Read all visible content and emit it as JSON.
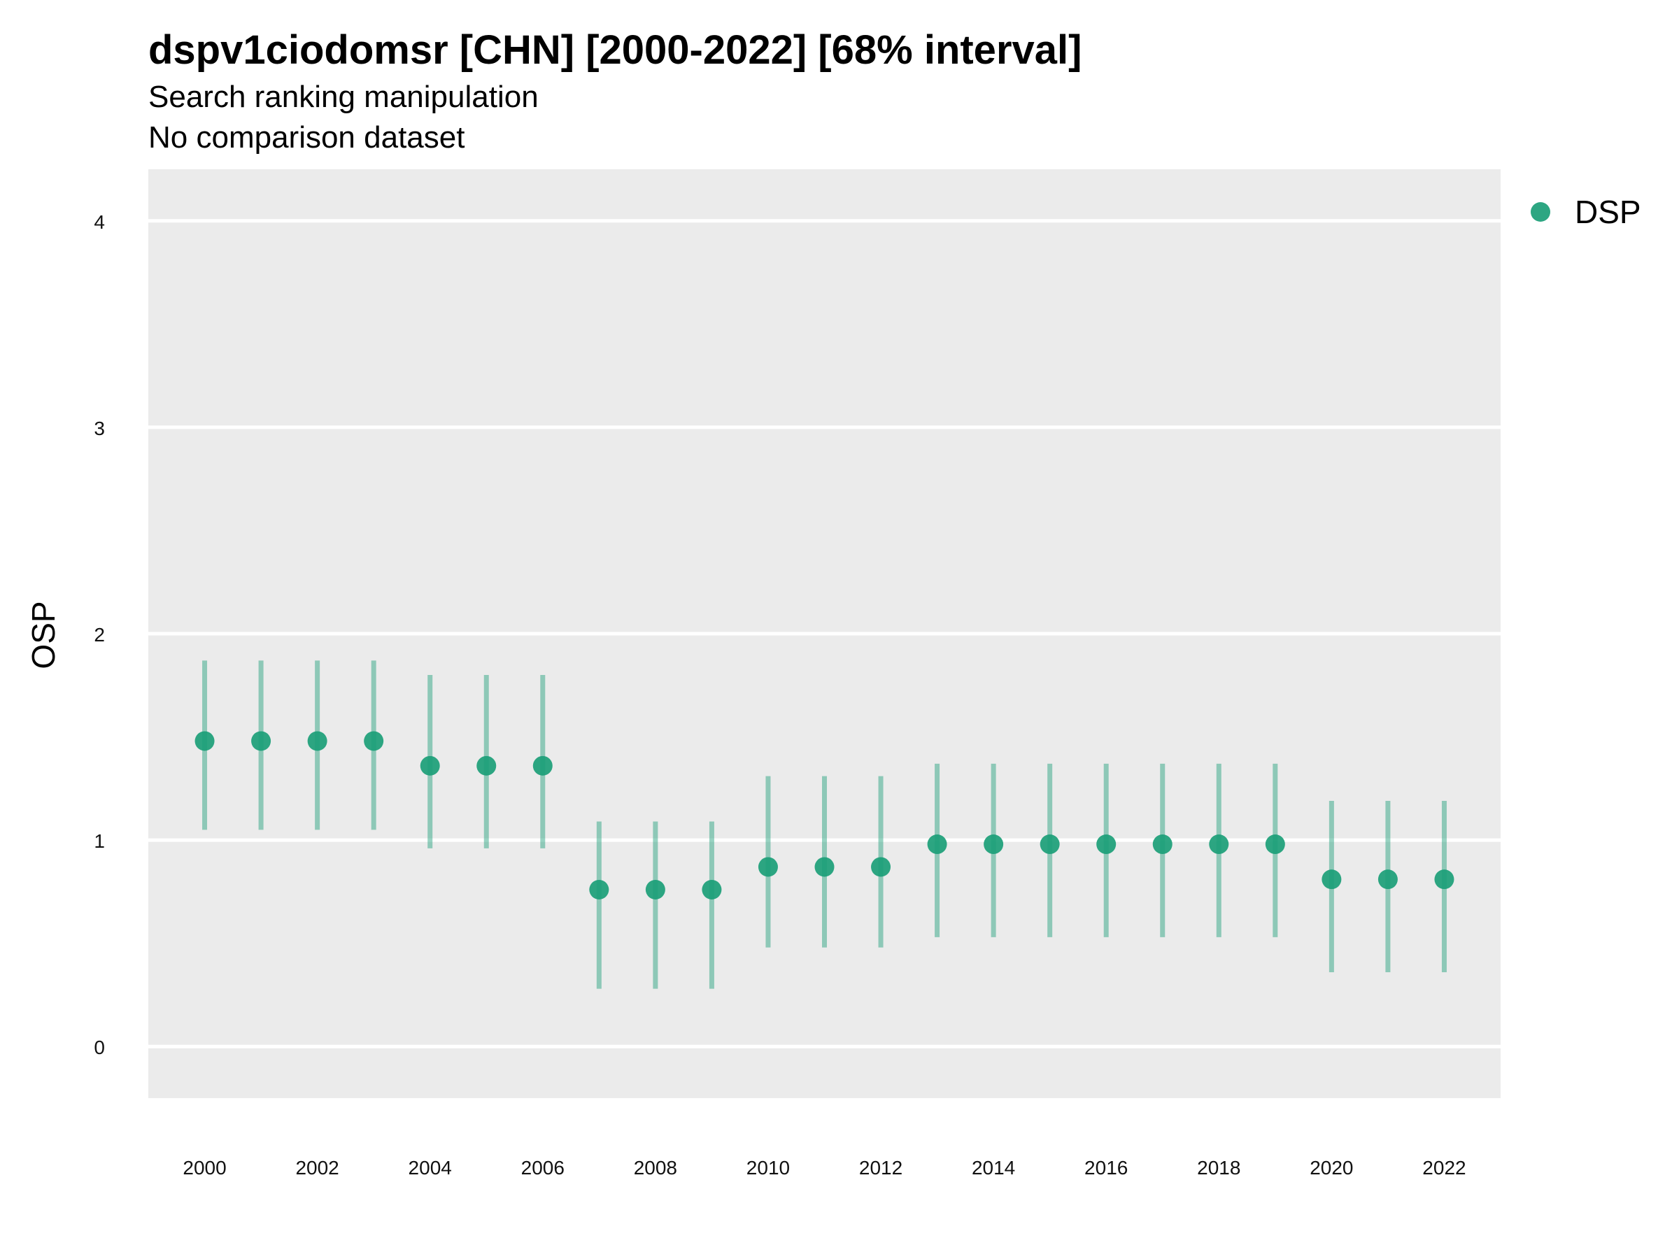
{
  "chart_data": {
    "type": "scatter",
    "title": "dspv1ciodomsr [CHN] [2000-2022] [68% interval]",
    "subtitle": [
      "Search ranking manipulation",
      "No comparison dataset"
    ],
    "xlabel": "",
    "ylabel": "OSP",
    "xlim": [
      1999,
      2023
    ],
    "ylim": [
      -0.25,
      4.25
    ],
    "xticks": [
      "2000",
      "2002",
      "2004",
      "2006",
      "2008",
      "2010",
      "2012",
      "2014",
      "2016",
      "2018",
      "2020",
      "2022"
    ],
    "yticks": [
      "0",
      "1",
      "2",
      "3",
      "4"
    ],
    "grid": true,
    "legend_position": "top-right",
    "series": [
      {
        "name": "DSP",
        "color": "#1b9e77",
        "x": [
          2000,
          2001,
          2002,
          2003,
          2004,
          2005,
          2006,
          2007,
          2008,
          2009,
          2010,
          2011,
          2012,
          2013,
          2014,
          2015,
          2016,
          2017,
          2018,
          2019,
          2020,
          2021,
          2022
        ],
        "y": [
          1.48,
          1.48,
          1.48,
          1.48,
          1.36,
          1.36,
          1.36,
          0.76,
          0.76,
          0.76,
          0.87,
          0.87,
          0.87,
          0.98,
          0.98,
          0.98,
          0.98,
          0.98,
          0.98,
          0.98,
          0.81,
          0.81,
          0.81
        ],
        "lower": [
          1.05,
          1.05,
          1.05,
          1.05,
          0.96,
          0.96,
          0.96,
          0.28,
          0.28,
          0.28,
          0.48,
          0.48,
          0.48,
          0.53,
          0.53,
          0.53,
          0.53,
          0.53,
          0.53,
          0.53,
          0.36,
          0.36,
          0.36
        ],
        "upper": [
          1.87,
          1.87,
          1.87,
          1.87,
          1.8,
          1.8,
          1.8,
          1.09,
          1.09,
          1.09,
          1.31,
          1.31,
          1.31,
          1.37,
          1.37,
          1.37,
          1.37,
          1.37,
          1.37,
          1.37,
          1.19,
          1.19,
          1.19
        ]
      }
    ]
  }
}
